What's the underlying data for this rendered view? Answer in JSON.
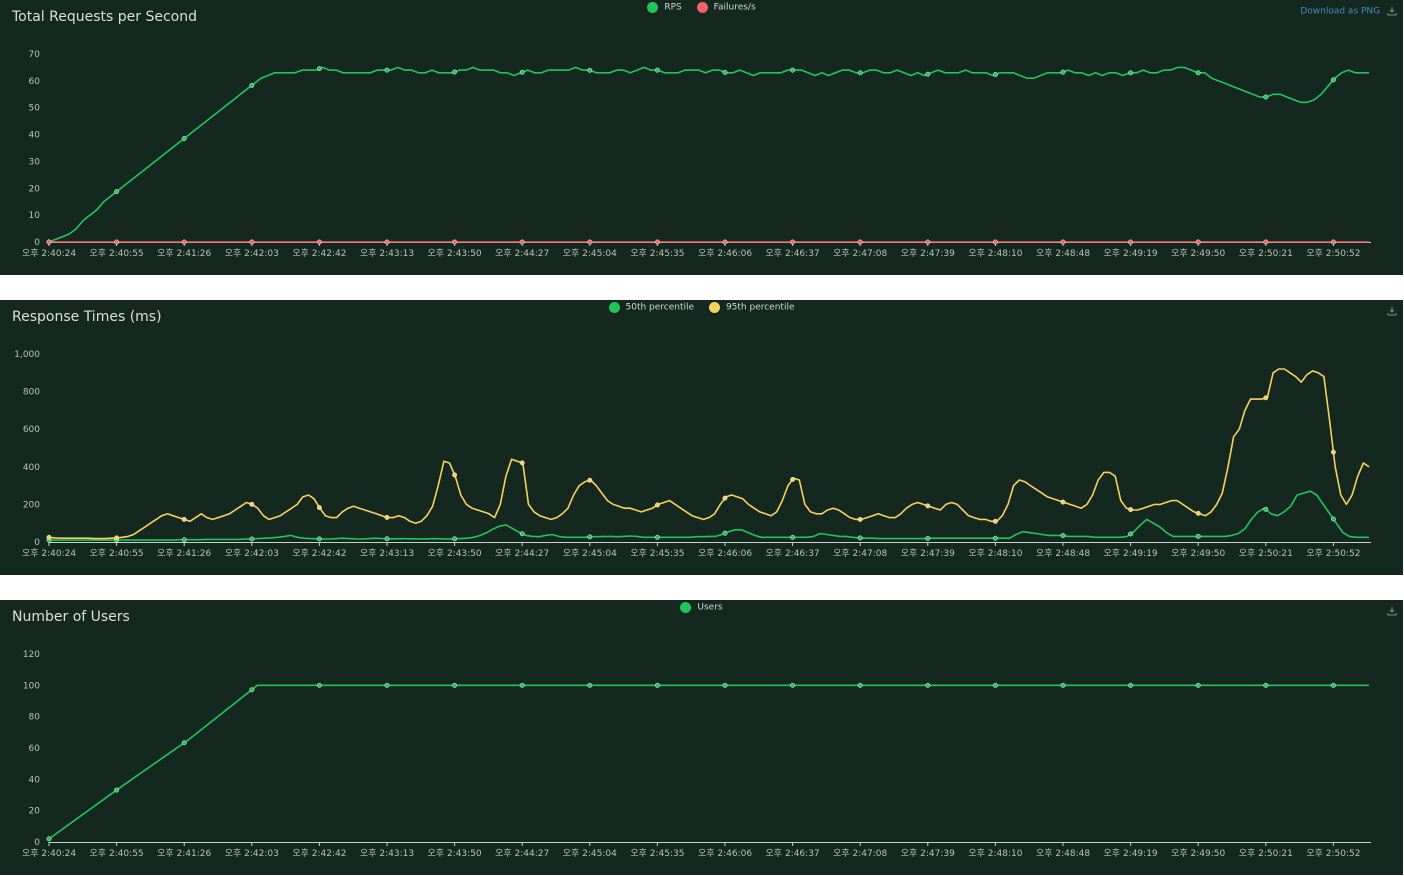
{
  "download_label": "Download as PNG",
  "times": [
    "오후 2:40:24",
    "오후 2:40:55",
    "오후 2:41:26",
    "오후 2:42:03",
    "오후 2:42:42",
    "오후 2:43:13",
    "오후 2:43:50",
    "오후 2:44:27",
    "오후 2:45:04",
    "오후 2:45:35",
    "오후 2:46:06",
    "오후 2:46:37",
    "오후 2:47:08",
    "오후 2:47:39",
    "오후 2:48:10",
    "오후 2:48:48",
    "오후 2:49:19",
    "오후 2:49:50",
    "오후 2:50:21",
    "오후 2:50:52"
  ],
  "chart_data": [
    {
      "type": "line",
      "title": "Total Requests per Second",
      "legend_position": "top-center",
      "ylim": [
        0,
        70
      ],
      "yticks": [
        "0",
        "10",
        "20",
        "30",
        "40",
        "50",
        "60",
        "70"
      ],
      "ytick_values": [
        0,
        10,
        20,
        30,
        40,
        50,
        60,
        70
      ],
      "series": [
        {
          "name": "RPS",
          "color": "#21c45b",
          "values": [
            0,
            1,
            2,
            3,
            5,
            8,
            10,
            12,
            15,
            17,
            19,
            21,
            23,
            25,
            27,
            29,
            31,
            33,
            35,
            37,
            39,
            41,
            43,
            45,
            47,
            49,
            51,
            53,
            55,
            57,
            59,
            61,
            62,
            63,
            63,
            63,
            63,
            64,
            64,
            64,
            65,
            64,
            64,
            63,
            63,
            63,
            63,
            63,
            64,
            64,
            64,
            65,
            64,
            64,
            63,
            63,
            64,
            63,
            63,
            63,
            64,
            64,
            65,
            64,
            64,
            64,
            63,
            63,
            62,
            63,
            64,
            63,
            63,
            64,
            64,
            64,
            64,
            65,
            64,
            64,
            63,
            63,
            63,
            64,
            64,
            63,
            64,
            65,
            64,
            64,
            63,
            63,
            63,
            64,
            64,
            64,
            63,
            64,
            64,
            63,
            63,
            64,
            63,
            62,
            63,
            63,
            63,
            63,
            64,
            64,
            64,
            63,
            62,
            63,
            62,
            63,
            64,
            64,
            63,
            63,
            64,
            64,
            63,
            63,
            64,
            63,
            62,
            63,
            62,
            63,
            64,
            63,
            63,
            63,
            64,
            63,
            63,
            63,
            62,
            63,
            63,
            63,
            62,
            61,
            61,
            62,
            63,
            63,
            63,
            64,
            63,
            63,
            62,
            63,
            62,
            63,
            63,
            62,
            63,
            63,
            64,
            63,
            63,
            64,
            64,
            65,
            65,
            64,
            63,
            63,
            61,
            60,
            59,
            58,
            57,
            56,
            55,
            54,
            54,
            55,
            55,
            54,
            53,
            52,
            52,
            53,
            55,
            58,
            61,
            63,
            64,
            63,
            63,
            63
          ]
        },
        {
          "name": "Failures/s",
          "color": "#f2636b",
          "values": [
            0,
            0,
            0,
            0,
            0,
            0,
            0,
            0,
            0,
            0,
            0,
            0,
            0,
            0,
            0,
            0,
            0,
            0,
            0,
            0
          ]
        }
      ]
    },
    {
      "type": "line",
      "title": "Response Times (ms)",
      "legend_position": "top-center",
      "ylim": [
        0,
        1000
      ],
      "yticks": [
        "0",
        "200",
        "400",
        "600",
        "800",
        "1,000"
      ],
      "ytick_values": [
        0,
        200,
        400,
        600,
        800,
        1000
      ],
      "series": [
        {
          "name": "50th percentile",
          "color": "#21c45b",
          "values": [
            10,
            10,
            10,
            10,
            10,
            10,
            10,
            10,
            10,
            10,
            10,
            10,
            10,
            10,
            10,
            10,
            10,
            10,
            10,
            10,
            12,
            12,
            12,
            12,
            14,
            14,
            14,
            14,
            14,
            14,
            16,
            16,
            18,
            20,
            22,
            25,
            30,
            35,
            25,
            20,
            18,
            17,
            16,
            16,
            18,
            20,
            18,
            16,
            16,
            18,
            20,
            18,
            17,
            17,
            18,
            17,
            17,
            16,
            17,
            18,
            17,
            16,
            17,
            18,
            20,
            25,
            35,
            50,
            70,
            85,
            90,
            70,
            50,
            35,
            30,
            28,
            35,
            40,
            30,
            25,
            25,
            25,
            25,
            28,
            28,
            30,
            30,
            28,
            30,
            32,
            30,
            25,
            25,
            25,
            25,
            25,
            25,
            25,
            25,
            28,
            28,
            30,
            30,
            40,
            55,
            65,
            65,
            50,
            35,
            25,
            25,
            25,
            25,
            25,
            25,
            25,
            25,
            30,
            45,
            40,
            35,
            30,
            30,
            25,
            22,
            20,
            20,
            18,
            18,
            18,
            18,
            18,
            18,
            18,
            18,
            20,
            20,
            20,
            20,
            20,
            20,
            20,
            20,
            20,
            20,
            20,
            20,
            20,
            40,
            55,
            50,
            45,
            40,
            35,
            35,
            35,
            30,
            30,
            30,
            30,
            25,
            25,
            25,
            25,
            25,
            30,
            55,
            90,
            120,
            100,
            80,
            50,
            30,
            30,
            30,
            30,
            30,
            30,
            30,
            30,
            30,
            35,
            45,
            70,
            120,
            160,
            180,
            150,
            140,
            160,
            190,
            250,
            260,
            270,
            250,
            200,
            150,
            100,
            50,
            30,
            25,
            25,
            25
          ]
        },
        {
          "name": "95th percentile",
          "color": "#f6d25b",
          "values": [
            25,
            22,
            20,
            20,
            20,
            20,
            20,
            20,
            18,
            18,
            18,
            20,
            22,
            25,
            30,
            40,
            60,
            80,
            100,
            120,
            140,
            150,
            140,
            130,
            120,
            110,
            130,
            150,
            130,
            120,
            130,
            140,
            150,
            170,
            190,
            210,
            200,
            180,
            140,
            120,
            130,
            140,
            160,
            180,
            200,
            240,
            250,
            230,
            180,
            140,
            130,
            130,
            160,
            180,
            190,
            180,
            170,
            160,
            150,
            140,
            130,
            130,
            140,
            130,
            110,
            100,
            110,
            140,
            190,
            300,
            430,
            420,
            350,
            250,
            200,
            180,
            170,
            160,
            150,
            130,
            200,
            350,
            440,
            430,
            420,
            200,
            160,
            140,
            130,
            120,
            130,
            150,
            180,
            250,
            300,
            320,
            330,
            300,
            260,
            220,
            200,
            190,
            180,
            180,
            170,
            160,
            170,
            180,
            200,
            210,
            220,
            200,
            180,
            160,
            140,
            130,
            120,
            130,
            150,
            200,
            240,
            250,
            240,
            230,
            200,
            180,
            160,
            150,
            140,
            160,
            220,
            300,
            340,
            330,
            200,
            160,
            150,
            150,
            170,
            180,
            170,
            150,
            130,
            120,
            120,
            130,
            140,
            150,
            140,
            130,
            130,
            150,
            180,
            200,
            210,
            200,
            190,
            180,
            170,
            200,
            210,
            200,
            170,
            140,
            130,
            120,
            120,
            110,
            110,
            140,
            200,
            300,
            330,
            320,
            300,
            280,
            260,
            240,
            230,
            220,
            210,
            200,
            190,
            180,
            200,
            250,
            330,
            370,
            370,
            350,
            220,
            180,
            170,
            170,
            180,
            190,
            200,
            200,
            210,
            220,
            220,
            200,
            180,
            160,
            150,
            140,
            160,
            200,
            260,
            400,
            560,
            600,
            700,
            760,
            760,
            760,
            770,
            900,
            920,
            920,
            900,
            880,
            850,
            890,
            910,
            900,
            880,
            650,
            400,
            250,
            200,
            250,
            350,
            420,
            400
          ]
        }
      ]
    },
    {
      "type": "line",
      "title": "Number of Users",
      "legend_position": "top-center",
      "ylim": [
        0,
        120
      ],
      "yticks": [
        "0",
        "20",
        "40",
        "60",
        "80",
        "100",
        "120"
      ],
      "ytick_values": [
        0,
        20,
        40,
        60,
        80,
        100,
        120
      ],
      "series": [
        {
          "name": "Users",
          "color": "#21c45b",
          "values": [
            2,
            34,
            65,
            100,
            100,
            100,
            100,
            100,
            100,
            100,
            100,
            100,
            100,
            100,
            100,
            100,
            100,
            100,
            100,
            100
          ]
        }
      ]
    }
  ]
}
